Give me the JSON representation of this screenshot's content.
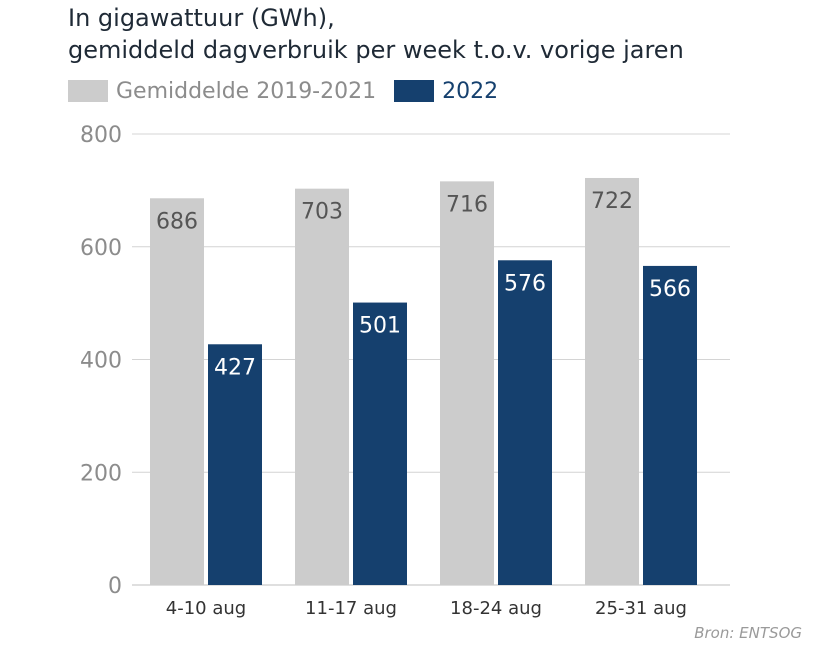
{
  "header": {
    "title_line1": "In gigawattuur (GWh),",
    "title_line2": "gemiddeld dagverbruik per week t.o.v. vorige jaren"
  },
  "legend": [
    {
      "label": "Gemiddelde 2019-2021",
      "color": "#cccccc"
    },
    {
      "label": "2022",
      "color": "#15406e"
    }
  ],
  "source": "Bron: ENTSOG",
  "chart_data": {
    "type": "bar",
    "categories": [
      "4-10 aug",
      "11-17 aug",
      "18-24 aug",
      "25-31 aug"
    ],
    "series": [
      {
        "name": "Gemiddelde 2019-2021",
        "values": [
          686,
          703,
          716,
          722
        ],
        "color": "#cccccc",
        "label_color": "#555555"
      },
      {
        "name": "2022",
        "values": [
          427,
          501,
          576,
          566
        ],
        "color": "#15406e",
        "label_color": "#ffffff"
      }
    ],
    "ylim": [
      0,
      800
    ],
    "yticks": [
      0,
      200,
      400,
      600,
      800
    ],
    "grid": true,
    "legend_position": "top-left"
  }
}
